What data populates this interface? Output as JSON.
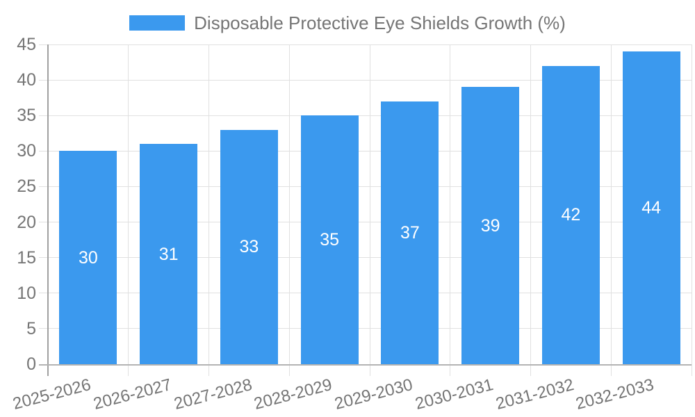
{
  "chart_data": {
    "type": "bar",
    "title": "Disposable Protective Eye Shields Growth (%)",
    "categories": [
      "2025-2026",
      "2026-2027",
      "2027-2028",
      "2028-2029",
      "2029-2030",
      "2030-2031",
      "2031-2032",
      "2032-2033"
    ],
    "values": [
      30,
      31,
      33,
      35,
      37,
      39,
      42,
      44
    ],
    "series": [
      {
        "name": "Disposable Protective Eye Shields Growth (%)",
        "values": [
          30,
          31,
          33,
          35,
          37,
          39,
          42,
          44
        ]
      }
    ],
    "xlabel": "",
    "ylabel": "",
    "ylim": [
      0,
      45
    ],
    "yticks": [
      0,
      5,
      10,
      15,
      20,
      25,
      30,
      35,
      40,
      45
    ],
    "grid": true,
    "legend_position": "top",
    "bar_value_labels_shown": true,
    "colors": {
      "bar": "#3b99ee",
      "grid": "#e0e0e0",
      "axis_line": "#a0a0a0",
      "baseline": "#b3b3b3",
      "axis_text": "#757575",
      "value_text": "#ffffff",
      "background": "#ffffff"
    }
  }
}
